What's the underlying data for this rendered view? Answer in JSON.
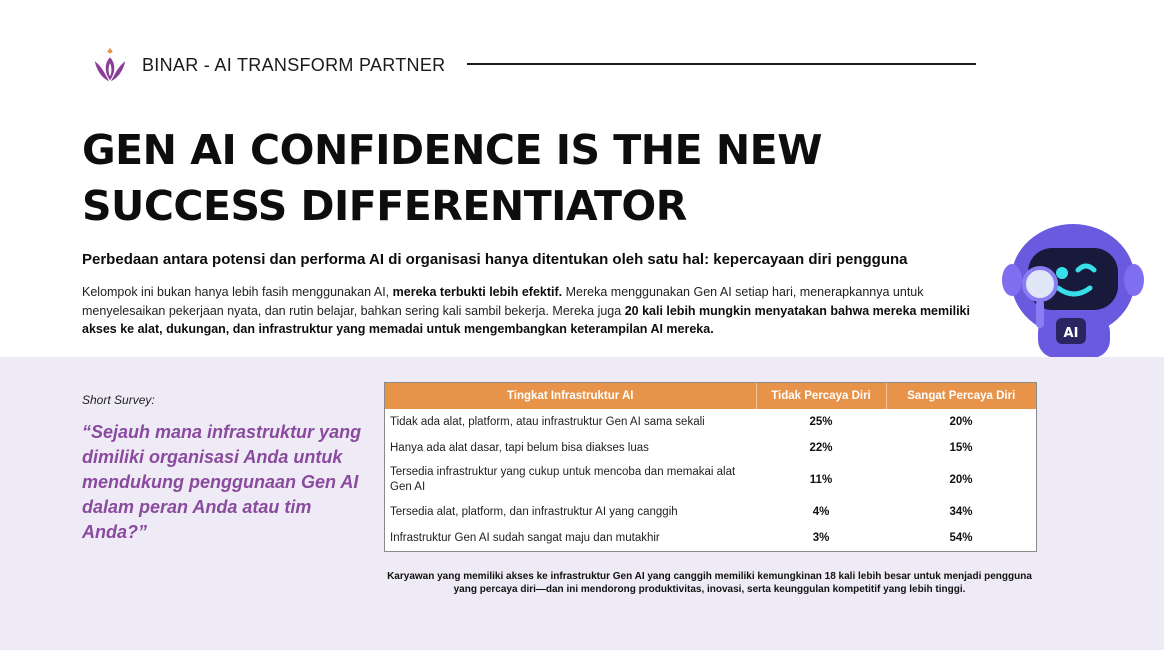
{
  "header": {
    "brand": "BINAR - AI TRANSFORM PARTNER",
    "logo_icon": "binar-lotus-logo",
    "accent_color": "#8a4a9e"
  },
  "main": {
    "title_line1": "GEN AI CONFIDENCE IS THE NEW",
    "title_line2": "SUCCESS DIFFERENTIATOR",
    "subtitle": "Perbedaan antara potensi dan performa AI di organisasi hanya ditentukan oleh satu hal: kepercayaan diri pengguna",
    "body_part1": "Kelompok ini bukan hanya lebih fasih menggunakan AI, ",
    "body_bold1": "mereka terbukti lebih efektif.",
    "body_part2": " Mereka menggunakan Gen AI setiap hari, menerapkannya untuk menyelesaikan pekerjaan nyata, dan rutin belajar, bahkan sering kali sambil bekerja. Mereka juga ",
    "body_bold2": "20 kali lebih mungkin menyatakan bahwa mereka memiliki akses ke alat, dukungan, dan infrastruktur yang memadai untuk mengembangkan keterampilan AI mereka."
  },
  "mascot": {
    "icon": "ai-robot-magnifier-icon",
    "badge_text": "AI"
  },
  "survey": {
    "label": "Short Survey:",
    "question": "“Sejauh mana infrastruktur yang dimiliki organisasi Anda untuk mendukung penggunaan Gen AI dalam peran Anda atau tim Anda?”"
  },
  "table": {
    "header_color": "#e8934a",
    "headers": [
      "Tingkat Infrastruktur AI",
      "Tidak Percaya Diri",
      "Sangat Percaya Diri"
    ],
    "rows": [
      {
        "level": "Tidak ada alat, platform, atau infrastruktur Gen AI sama sekali",
        "not_confident": "25%",
        "very_confident": "20%"
      },
      {
        "level": "Hanya ada alat dasar, tapi belum bisa diakses luas",
        "not_confident": "22%",
        "very_confident": "15%"
      },
      {
        "level": "Tersedia infrastruktur yang cukup untuk mencoba dan memakai alat Gen AI",
        "not_confident": "11%",
        "very_confident": "20%"
      },
      {
        "level": "Tersedia alat, platform, dan infrastruktur AI yang canggih",
        "not_confident": "4%",
        "very_confident": "34%"
      },
      {
        "level": "Infrastruktur Gen AI sudah sangat maju dan mutakhir",
        "not_confident": "3%",
        "very_confident": "54%"
      }
    ]
  },
  "caption": "Karyawan yang memiliki akses ke infrastruktur Gen AI yang canggih memiliki kemungkinan 18 kali lebih besar untuk menjadi pengguna yang percaya diri—dan ini mendorong produktivitas, inovasi, serta keunggulan kompetitif yang lebih tinggi."
}
